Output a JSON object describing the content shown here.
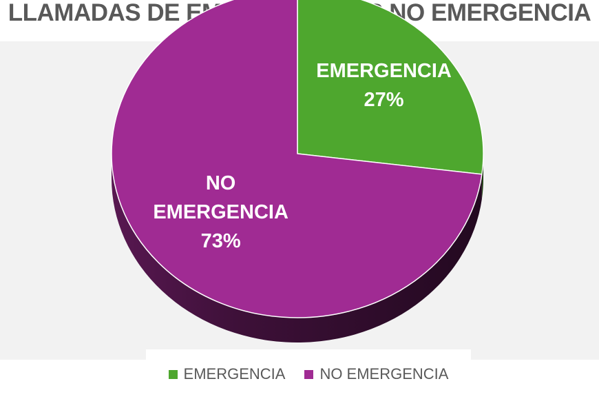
{
  "chart_data": {
    "type": "pie",
    "title": "LLAMADAS DE EMERGENCIA VS NO EMERGENCIA",
    "categories": [
      "EMERGENCIA",
      "NO EMERGENCIA"
    ],
    "values": [
      27,
      73
    ],
    "value_suffix": "%",
    "colors": [
      "#4ea72e",
      "#a02b93"
    ],
    "style": "3d",
    "legend": {
      "placement": "bottom",
      "entries": [
        "EMERGENCIA",
        "NO EMERGENCIA"
      ]
    },
    "data_labels": [
      {
        "category_lines": [
          "EMERGENCIA"
        ],
        "value": "27%"
      },
      {
        "category_lines": [
          "NO",
          "EMERGENCIA"
        ],
        "value": "73%"
      }
    ]
  }
}
